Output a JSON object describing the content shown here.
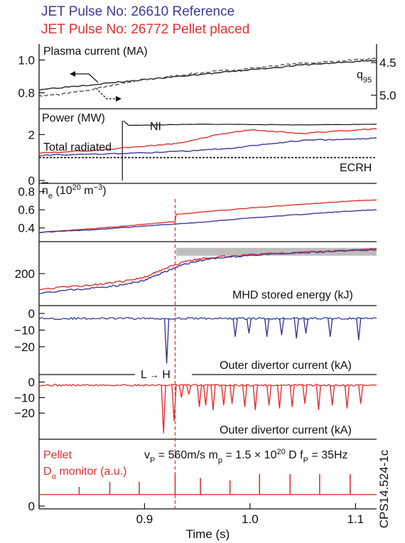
{
  "legend": {
    "reference": "JET Pulse No: 26610 Reference",
    "pellet": "JET Pulse No: 26772 Pellet placed"
  },
  "colors": {
    "reference": "#3a3a9a",
    "pellet": "#e23030",
    "axis": "#111111",
    "band": "#bdbdbd"
  },
  "xlabel": "Time (s)",
  "figure_id": "CPS14.524-1c",
  "chart_data": [
    {
      "type": "line",
      "title": "Plasma current (MA)",
      "xlim": [
        0.8,
        1.12
      ],
      "ylim_left": [
        0.72,
        1.08
      ],
      "left_ticks": [
        "1.0",
        "0.8"
      ],
      "right_axis_label": "q95",
      "right_axis_label_base": "q",
      "right_axis_label_sub": "95",
      "right_ticks": [
        "4.5",
        "5.0"
      ],
      "series": [
        {
          "name": "Plasma current",
          "axis": "left",
          "x": [
            0.8,
            0.85,
            0.9,
            0.95,
            1.0,
            1.05,
            1.1,
            1.12
          ],
          "y": [
            0.82,
            0.85,
            0.88,
            0.91,
            0.94,
            0.97,
            0.99,
            1.0
          ]
        },
        {
          "name": "q95",
          "axis": "right",
          "x": [
            0.8,
            0.82,
            0.85,
            0.88,
            0.9,
            0.95,
            1.0,
            1.05,
            1.1,
            1.12
          ],
          "y": [
            0.78,
            0.79,
            0.82,
            0.86,
            0.88,
            0.92,
            0.95,
            0.98,
            1.0,
            1.01
          ]
        }
      ]
    },
    {
      "type": "line",
      "title": "Power (MW)",
      "xlim": [
        0.8,
        1.12
      ],
      "ylim": [
        0,
        3
      ],
      "yticks": [
        "2",
        "0"
      ],
      "annotations": [
        "NI",
        "Total radiated",
        "ECRH"
      ],
      "series": [
        {
          "name": "NI",
          "x": [
            0.8,
            0.878,
            0.88,
            0.885,
            0.95,
            1.05,
            1.12
          ],
          "y": [
            0,
            0,
            2.6,
            2.4,
            2.45,
            2.42,
            2.45
          ]
        },
        {
          "name": "Total radiated (pellet)",
          "x": [
            0.8,
            0.85,
            0.9,
            0.93,
            0.97,
            1.0,
            1.05,
            1.1,
            1.12
          ],
          "y": [
            1.2,
            1.3,
            1.5,
            1.6,
            2.0,
            2.2,
            2.05,
            2.2,
            2.25
          ]
        },
        {
          "name": "Total radiated (reference)",
          "x": [
            0.8,
            0.85,
            0.9,
            0.95,
            0.98,
            1.02,
            1.05,
            1.1,
            1.12
          ],
          "y": [
            1.1,
            1.15,
            1.2,
            1.3,
            1.4,
            1.6,
            1.75,
            1.8,
            1.85
          ]
        },
        {
          "name": "ECRH",
          "x": [
            0.8,
            1.12
          ],
          "y": [
            1.0,
            1.0
          ]
        }
      ]
    },
    {
      "type": "line",
      "title_base": "n",
      "title_sub": "e",
      "title_rest": " (10",
      "title_sup": "20",
      "title_unit": " m",
      "title_sup2": "−3",
      "title_close": ")",
      "xlim": [
        0.8,
        1.12
      ],
      "ylim": [
        0.28,
        0.86
      ],
      "yticks": [
        "0.8",
        "0.6",
        "0.4"
      ],
      "series": [
        {
          "name": "pellet",
          "x": [
            0.8,
            0.85,
            0.9,
            0.929,
            0.93,
            1.0,
            1.05,
            1.1,
            1.12
          ],
          "y": [
            0.35,
            0.39,
            0.44,
            0.47,
            0.55,
            0.62,
            0.66,
            0.7,
            0.71
          ]
        },
        {
          "name": "reference",
          "x": [
            0.8,
            0.85,
            0.9,
            0.95,
            1.0,
            1.05,
            1.1,
            1.12
          ],
          "y": [
            0.35,
            0.38,
            0.42,
            0.46,
            0.51,
            0.55,
            0.59,
            0.6
          ]
        }
      ]
    },
    {
      "type": "line",
      "title": "MHD stored energy (kJ)",
      "xlim": [
        0.8,
        1.12
      ],
      "ylim": [
        70,
        330
      ],
      "yticks": [
        "200"
      ],
      "shaded_band": {
        "x": [
          0.93,
          1.12
        ],
        "y": [
          280,
          315
        ]
      },
      "series": [
        {
          "name": "pellet",
          "x": [
            0.8,
            0.85,
            0.88,
            0.9,
            0.92,
            0.94,
            0.96,
            1.0,
            1.05,
            1.1,
            1.12
          ],
          "y": [
            130,
            150,
            165,
            185,
            225,
            255,
            270,
            285,
            295,
            305,
            310
          ]
        },
        {
          "name": "reference",
          "x": [
            0.8,
            0.85,
            0.88,
            0.9,
            0.92,
            0.94,
            0.96,
            1.0,
            1.05,
            1.1,
            1.12
          ],
          "y": [
            115,
            135,
            150,
            170,
            210,
            245,
            265,
            282,
            293,
            303,
            308
          ]
        }
      ]
    },
    {
      "type": "line",
      "title": "Outer divertor current (kA)",
      "xlim": [
        0.8,
        1.12
      ],
      "ylim": [
        -35,
        3
      ],
      "yticks": [
        "0",
        "−10",
        "−20"
      ],
      "series": [
        {
          "name": "reference",
          "baseline": -3,
          "spikes": [
            {
              "x": 0.921,
              "y": -30
            },
            {
              "x": 0.986,
              "y": -14
            },
            {
              "x": 0.999,
              "y": -12
            },
            {
              "x": 1.016,
              "y": -14
            },
            {
              "x": 1.03,
              "y": -13
            },
            {
              "x": 1.044,
              "y": -15
            },
            {
              "x": 1.053,
              "y": -12
            },
            {
              "x": 1.076,
              "y": -14
            },
            {
              "x": 1.103,
              "y": -16
            }
          ]
        }
      ]
    },
    {
      "type": "line",
      "title": "Outer divertor current (kA)",
      "xlim": [
        0.8,
        1.12
      ],
      "ylim": [
        -35,
        3
      ],
      "yticks": [
        "0",
        "−10",
        "−20"
      ],
      "annotation": {
        "left": "L",
        "arrow": "→",
        "right": "H"
      },
      "series": [
        {
          "name": "pellet",
          "baseline": -2,
          "spikes": [
            {
              "x": 0.918,
              "y": -33
            },
            {
              "x": 0.928,
              "y": -25
            },
            {
              "x": 0.935,
              "y": -10
            },
            {
              "x": 0.942,
              "y": -8
            },
            {
              "x": 0.952,
              "y": -16
            },
            {
              "x": 0.958,
              "y": -15
            },
            {
              "x": 0.965,
              "y": -18
            },
            {
              "x": 0.975,
              "y": -15
            },
            {
              "x": 0.983,
              "y": -14
            },
            {
              "x": 0.995,
              "y": -16
            },
            {
              "x": 1.005,
              "y": -18
            },
            {
              "x": 1.018,
              "y": -15
            },
            {
              "x": 1.028,
              "y": -17
            },
            {
              "x": 1.04,
              "y": -16
            },
            {
              "x": 1.052,
              "y": -14
            },
            {
              "x": 1.065,
              "y": -18
            },
            {
              "x": 1.078,
              "y": -15
            },
            {
              "x": 1.092,
              "y": -17
            },
            {
              "x": 1.105,
              "y": -14
            }
          ]
        }
      ]
    },
    {
      "type": "line",
      "title_lines": [
        "Pellet"
      ],
      "monitor_label_base": "D",
      "monitor_label_sub": "α",
      "monitor_label_rest": " monitor (a.u.)",
      "params_text": "v",
      "params_v_sub": "P",
      "params_v_val": " = 560m/s m",
      "params_m_sub": "p",
      "params_m_val": " = 1.5 × 10",
      "params_m_sup": "20",
      "params_rest": " D f",
      "params_f_sub": "P",
      "params_f_val": " = 35Hz",
      "xlim": [
        0.8,
        1.12
      ],
      "ylim": [
        0,
        1
      ],
      "yticks": [
        "0"
      ],
      "xticks": [
        0.9,
        1.0,
        1.1
      ],
      "xticklabels": [
        "0.9",
        "1.0",
        "1.1"
      ],
      "series": [
        {
          "name": "pellet",
          "baseline": 0.18,
          "spike_x": [
            0.838,
            0.867,
            0.895,
            0.929,
            0.953,
            0.981,
            1.009,
            1.038,
            1.066,
            1.095
          ],
          "spike_y": [
            0.3,
            0.38,
            0.38,
            0.5,
            0.44,
            0.4,
            0.5,
            0.5,
            0.5,
            0.5
          ]
        }
      ]
    }
  ]
}
